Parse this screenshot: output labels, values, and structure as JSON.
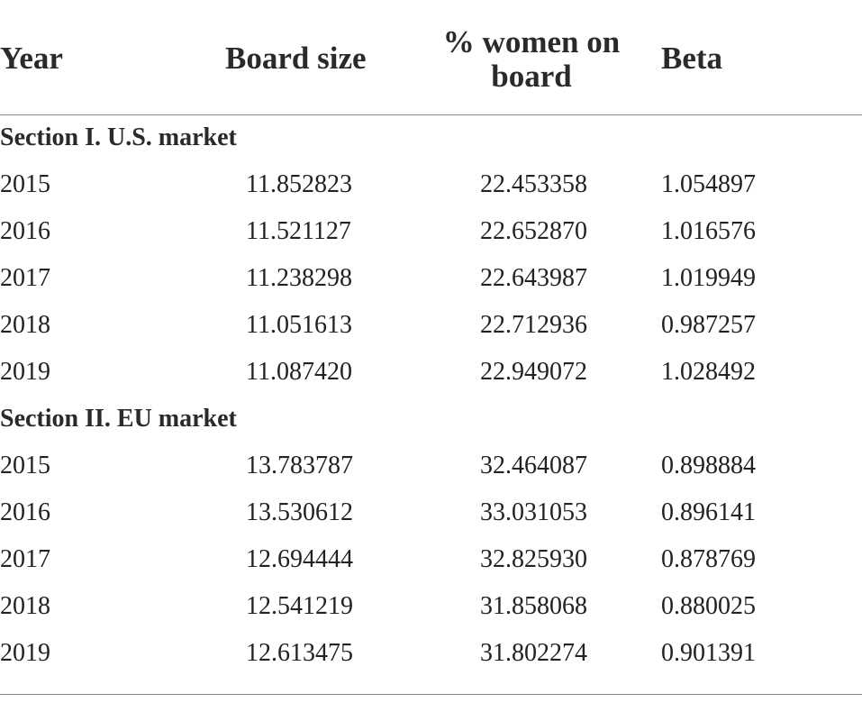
{
  "table": {
    "headers": {
      "year": "Year",
      "board_size": "Board size",
      "women_line1": "% women on",
      "women_line2": "board",
      "beta": "Beta"
    },
    "sections": [
      {
        "label": "Section I. U.S. market",
        "rows": [
          {
            "year": "2015",
            "board_size": "11.852823",
            "women": "22.453358",
            "beta": "1.054897"
          },
          {
            "year": "2016",
            "board_size": "11.521127",
            "women": "22.652870",
            "beta": "1.016576"
          },
          {
            "year": "2017",
            "board_size": "11.238298",
            "women": "22.643987",
            "beta": "1.019949"
          },
          {
            "year": "2018",
            "board_size": "11.051613",
            "women": "22.712936",
            "beta": "0.987257"
          },
          {
            "year": "2019",
            "board_size": "11.087420",
            "women": "22.949072",
            "beta": "1.028492"
          }
        ]
      },
      {
        "label": "Section II. EU market",
        "rows": [
          {
            "year": "2015",
            "board_size": "13.783787",
            "women": "32.464087",
            "beta": "0.898884"
          },
          {
            "year": "2016",
            "board_size": "13.530612",
            "women": "33.031053",
            "beta": "0.896141"
          },
          {
            "year": "2017",
            "board_size": "12.694444",
            "women": "32.825930",
            "beta": "0.878769"
          },
          {
            "year": "2018",
            "board_size": "12.541219",
            "women": "31.858068",
            "beta": "0.880025"
          },
          {
            "year": "2019",
            "board_size": "12.613475",
            "women": "31.802274",
            "beta": "0.901391"
          }
        ]
      }
    ]
  }
}
